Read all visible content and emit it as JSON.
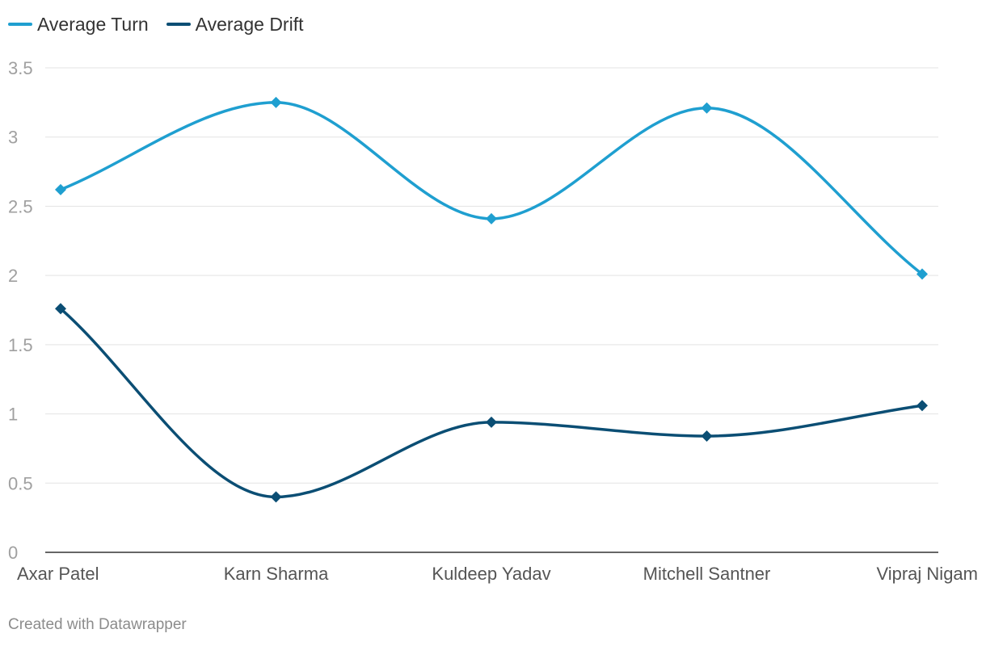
{
  "legend": {
    "items": [
      {
        "label": "Average Turn",
        "color": "#1f9fd0"
      },
      {
        "label": "Average Drift",
        "color": "#0b4e74"
      }
    ]
  },
  "chart_data": {
    "type": "line",
    "categories": [
      "Axar Patel",
      "Karn Sharma",
      "Kuldeep Yadav",
      "Mitchell Santner",
      "Vipraj Nigam"
    ],
    "series": [
      {
        "name": "Average Turn",
        "color": "#1f9fd0",
        "values": [
          2.62,
          3.25,
          2.41,
          3.21,
          2.01
        ]
      },
      {
        "name": "Average Drift",
        "color": "#0b4e74",
        "values": [
          1.76,
          0.4,
          0.94,
          0.84,
          1.06
        ]
      }
    ],
    "y_ticks": [
      "0",
      "0.5",
      "1",
      "1.5",
      "2",
      "2.5",
      "3",
      "3.5"
    ],
    "ylim": [
      0,
      3.5
    ],
    "grid": true,
    "legend_position": "top-left",
    "curve": "smooth",
    "markers": "diamond"
  },
  "footer": {
    "credit": "Created with Datawrapper"
  }
}
